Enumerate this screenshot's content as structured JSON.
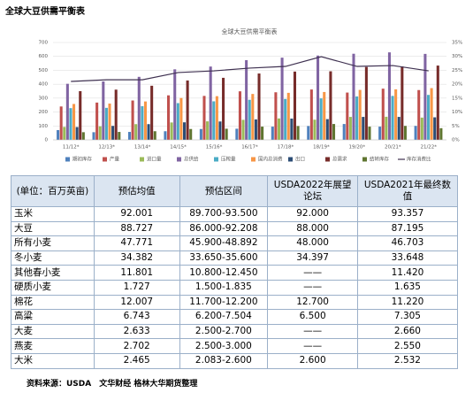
{
  "page_title": "全球大豆供需平衡表",
  "chart_data": {
    "type": "bar",
    "title": "全球大豆供需平衡表",
    "categories": [
      "11/12*",
      "12/13*",
      "13/14*",
      "14/15*",
      "15/16*",
      "16/17*",
      "17/18*",
      "18/19*",
      "19/20*",
      "20/21*",
      "21/22*"
    ],
    "series": [
      {
        "name": "期初库存",
        "color": "#4f81bd",
        "values": [
          70,
          55,
          57,
          62,
          78,
          80,
          95,
          99,
          114,
          95,
          100
        ]
      },
      {
        "name": "产量",
        "color": "#c0504d",
        "values": [
          240,
          268,
          283,
          320,
          316,
          349,
          342,
          362,
          340,
          368,
          358
        ]
      },
      {
        "name": "进口量",
        "color": "#9bbb59",
        "values": [
          93,
          97,
          113,
          125,
          133,
          144,
          154,
          145,
          165,
          166,
          160
        ]
      },
      {
        "name": "总供给",
        "color": "#8064a2",
        "values": [
          403,
          420,
          453,
          507,
          527,
          573,
          591,
          606,
          619,
          629,
          618
        ]
      },
      {
        "name": "压榨量",
        "color": "#4bacc6",
        "values": [
          228,
          230,
          242,
          264,
          277,
          288,
          294,
          298,
          312,
          316,
          323
        ]
      },
      {
        "name": "国内总消费",
        "color": "#f79646",
        "values": [
          258,
          261,
          276,
          301,
          314,
          330,
          338,
          344,
          359,
          363,
          372
        ]
      },
      {
        "name": "出口",
        "color": "#2c4d75",
        "values": [
          92,
          100,
          113,
          126,
          132,
          147,
          153,
          149,
          165,
          165,
          162
        ]
      },
      {
        "name": "总需求",
        "color": "#772c2a",
        "values": [
          350,
          361,
          389,
          427,
          446,
          477,
          491,
          493,
          524,
          528,
          534
        ]
      },
      {
        "name": "结转库存",
        "color": "#5f7530",
        "values": [
          55,
          57,
          62,
          78,
          80,
          95,
          99,
          114,
          95,
          100,
          84
        ]
      },
      {
        "name": "库存消费比",
        "color": "#3f3151",
        "type": "line",
        "axis": "y2",
        "values": [
          21.0,
          21.6,
          21.6,
          24.2,
          24.8,
          25.8,
          26.4,
          29.9,
          26.4,
          26.7,
          24.8
        ]
      }
    ],
    "ylim": [
      0,
      700
    ],
    "yticks": [
      0,
      100,
      200,
      300,
      400,
      500,
      600,
      700
    ],
    "y2lim": [
      0,
      35
    ],
    "y2ticks": [
      {
        "value": 0,
        "label": "0%"
      },
      {
        "value": 5,
        "label": "5%"
      },
      {
        "value": 10,
        "label": "10%"
      },
      {
        "value": 15,
        "label": "15%"
      },
      {
        "value": 20,
        "label": "20%"
      },
      {
        "value": 25,
        "label": "25%"
      },
      {
        "value": 30,
        "label": "30%"
      },
      {
        "value": 35,
        "label": "35%"
      }
    ],
    "grid": true,
    "legend": "bottom"
  },
  "table": {
    "header": [
      "(单位：百万英亩)",
      "预估均值",
      "预估区间",
      "USDA2022年展望论坛",
      "USDA2021年最终数值"
    ],
    "rows": [
      [
        "玉米",
        "92.001",
        "89.700-93.500",
        "92.000",
        "93.357"
      ],
      [
        "大豆",
        "88.727",
        "86.000-92.208",
        "88.000",
        "87.195"
      ],
      [
        "所有小麦",
        "47.771",
        "45.900-48.892",
        "48.000",
        "46.703"
      ],
      [
        "冬小麦",
        "34.382",
        "33.650-35.600",
        "34.397",
        "33.648"
      ],
      [
        "其他春小麦",
        "11.801",
        "10.800-12.450",
        "——",
        "11.420"
      ],
      [
        "硬质小麦",
        "1.727",
        "1.500-1.835",
        "——",
        "1.635"
      ],
      [
        "棉花",
        "12.007",
        "11.700-12.200",
        "12.700",
        "11.220"
      ],
      [
        "高粱",
        "6.743",
        "6.200-7.504",
        "6.500",
        "7.305"
      ],
      [
        "大麦",
        "2.633",
        "2.500-2.700",
        "——",
        "2.660"
      ],
      [
        "燕麦",
        "2.702",
        "2.500-3.000",
        "——",
        "2.550"
      ],
      [
        "大米",
        "2.465",
        "2.083-2.600",
        "2.600",
        "2.532"
      ]
    ]
  },
  "source": "资料来源：USDA　文华财经 格林大华期货整理"
}
